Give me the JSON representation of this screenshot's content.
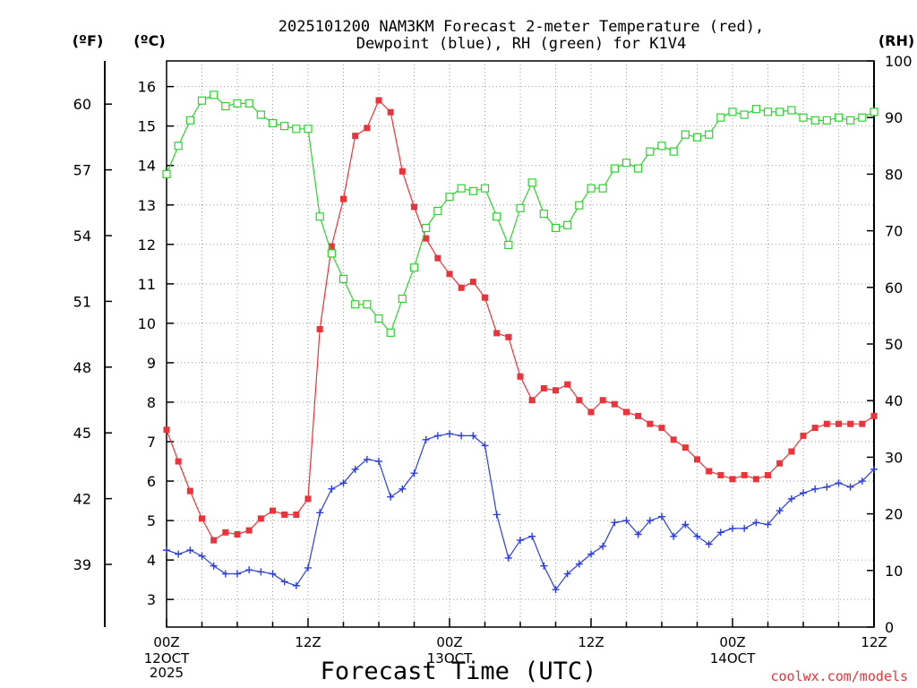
{
  "chart_data": {
    "type": "line",
    "title_line1": "2025101200 NAM3KM Forecast 2-meter Temperature (red),",
    "title_line2": "Dewpoint (blue), RH (green) for K1V4",
    "xlabel": "Forecast Time (UTC)",
    "credit": "coolwx.com/models",
    "units": {
      "f": "(ºF)",
      "c": "(ºC)",
      "rh": "(RH)"
    },
    "x_hours": {
      "min": 0,
      "max": 60,
      "step": 1
    },
    "y_celsius": {
      "min": 2.3,
      "max": 16.65
    },
    "y_rh": {
      "min": 0,
      "max": 100
    },
    "y_fahrenheit_ticks": [
      "39",
      "42",
      "45",
      "48",
      "51",
      "54",
      "57",
      "60"
    ],
    "y_celsius_ticks": [
      "3",
      "4",
      "5",
      "6",
      "7",
      "8",
      "9",
      "10",
      "11",
      "12",
      "13",
      "14",
      "15",
      "16"
    ],
    "y_rh_ticks": [
      "0",
      "10",
      "20",
      "30",
      "40",
      "50",
      "60",
      "70",
      "80",
      "90",
      "100"
    ],
    "x_ticks": [
      {
        "hour": 0,
        "label": "00Z",
        "date": "12OCT",
        "year": "2025"
      },
      {
        "hour": 12,
        "label": "12Z",
        "date": "",
        "year": ""
      },
      {
        "hour": 24,
        "label": "00Z",
        "date": "13OCT",
        "year": ""
      },
      {
        "hour": 36,
        "label": "12Z",
        "date": "",
        "year": ""
      },
      {
        "hour": 48,
        "label": "00Z",
        "date": "14OCT",
        "year": ""
      },
      {
        "hour": 60,
        "label": "12Z",
        "date": "",
        "year": ""
      }
    ],
    "series": [
      {
        "name": "Temperature",
        "unit": "C",
        "color": "#e8343a",
        "marker": "filled-square",
        "values": [
          7.3,
          6.5,
          5.75,
          5.05,
          4.5,
          4.7,
          4.65,
          4.75,
          5.05,
          5.25,
          5.15,
          5.15,
          5.55,
          9.85,
          11.95,
          13.15,
          14.75,
          14.95,
          15.65,
          15.35,
          13.85,
          12.95,
          12.15,
          11.65,
          11.25,
          10.9,
          11.05,
          10.65,
          9.75,
          9.65,
          8.65,
          8.05,
          8.35,
          8.3,
          8.45,
          8.05,
          7.75,
          8.05,
          7.95,
          7.75,
          7.65,
          7.45,
          7.35,
          7.05,
          6.85,
          6.55,
          6.25,
          6.15,
          6.05,
          6.15,
          6.05,
          6.15,
          6.45,
          6.75,
          7.15,
          7.35,
          7.45,
          7.45,
          7.45,
          7.45,
          7.65
        ]
      },
      {
        "name": "Dewpoint",
        "unit": "C",
        "color": "#2b3fe0",
        "marker": "plus",
        "values": [
          4.25,
          4.15,
          4.25,
          4.1,
          3.85,
          3.65,
          3.65,
          3.75,
          3.7,
          3.65,
          3.45,
          3.35,
          3.8,
          5.2,
          5.8,
          5.95,
          6.3,
          6.55,
          6.5,
          5.6,
          5.8,
          6.2,
          7.05,
          7.15,
          7.2,
          7.15,
          7.15,
          6.9,
          5.15,
          4.05,
          4.5,
          4.6,
          3.85,
          3.25,
          3.65,
          3.9,
          4.15,
          4.35,
          4.95,
          5.0,
          4.65,
          5.0,
          5.1,
          4.6,
          4.9,
          4.6,
          4.4,
          4.7,
          4.8,
          4.8,
          4.95,
          4.9,
          5.25,
          5.55,
          5.7,
          5.8,
          5.85,
          5.95,
          5.85,
          6.0,
          6.3
        ]
      },
      {
        "name": "RH",
        "unit": "%",
        "color": "#2ed22e",
        "marker": "open-square",
        "values": [
          80,
          85,
          89.5,
          93,
          94,
          92,
          92.5,
          92.5,
          90.5,
          89,
          88.5,
          88,
          88,
          72.5,
          66,
          61.5,
          57,
          57,
          54.5,
          52,
          58,
          63.5,
          70.5,
          73.5,
          76,
          77.5,
          77,
          77.5,
          72.5,
          67.5,
          74,
          78.5,
          73,
          70.5,
          71,
          74.5,
          77.5,
          77.5,
          81,
          82,
          81,
          84,
          85,
          84,
          87,
          86.5,
          87,
          90,
          91,
          90.5,
          91.5,
          91,
          91,
          91.3,
          90,
          89.5,
          89.5,
          90,
          89.5,
          90,
          91
        ]
      }
    ]
  }
}
